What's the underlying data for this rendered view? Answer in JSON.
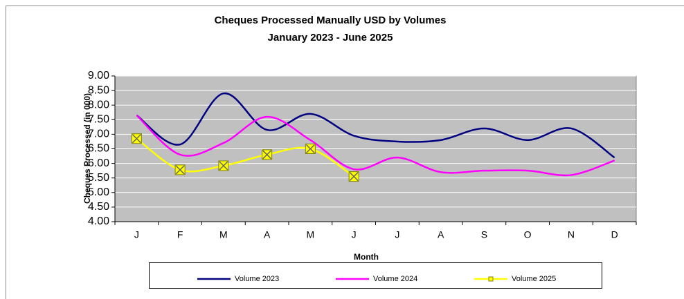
{
  "chart_data": {
    "type": "line",
    "title": "Cheques Processed Manually USD by Volumes",
    "subtitle": "January 2023 - June 2025",
    "x_label": "Month",
    "y_label": "Cheques Processed (in 000)",
    "categories": [
      "J",
      "F",
      "M",
      "A",
      "M",
      "J",
      "J",
      "A",
      "S",
      "O",
      "N",
      "D"
    ],
    "series": [
      {
        "name": "Volume 2023",
        "color": "#000080",
        "marker": false,
        "values": [
          7.65,
          6.65,
          8.4,
          7.15,
          7.7,
          6.95,
          6.75,
          6.8,
          7.2,
          6.8,
          7.2,
          6.2
        ]
      },
      {
        "name": "Volume 2024",
        "color": "#ff00ff",
        "marker": false,
        "values": [
          7.65,
          6.3,
          6.7,
          7.6,
          6.8,
          5.8,
          6.2,
          5.7,
          5.75,
          5.75,
          5.6,
          6.1
        ]
      },
      {
        "name": "Volume 2025",
        "color": "#ffff00",
        "marker": true,
        "values": [
          6.85,
          5.78,
          5.92,
          6.3,
          6.5,
          5.55,
          null,
          null,
          null,
          null,
          null,
          null
        ]
      }
    ],
    "ylim": [
      4,
      9
    ],
    "yticks": [
      {
        "value": 4,
        "label": "4.00"
      },
      {
        "value": 4.5,
        "label": "4.50"
      },
      {
        "value": 5,
        "label": "5.00"
      },
      {
        "value": 5.5,
        "label": "5.50"
      },
      {
        "value": 6,
        "label": "6.00"
      },
      {
        "value": 6.5,
        "label": "6.50"
      },
      {
        "value": 7,
        "label": "7.00"
      },
      {
        "value": 7.5,
        "label": "7.50"
      },
      {
        "value": 8,
        "label": "8.00"
      },
      {
        "value": 8.5,
        "label": "8.50"
      },
      {
        "value": 9,
        "label": "9.00"
      }
    ],
    "grid": true,
    "smooth": true,
    "legend": "bottom"
  }
}
